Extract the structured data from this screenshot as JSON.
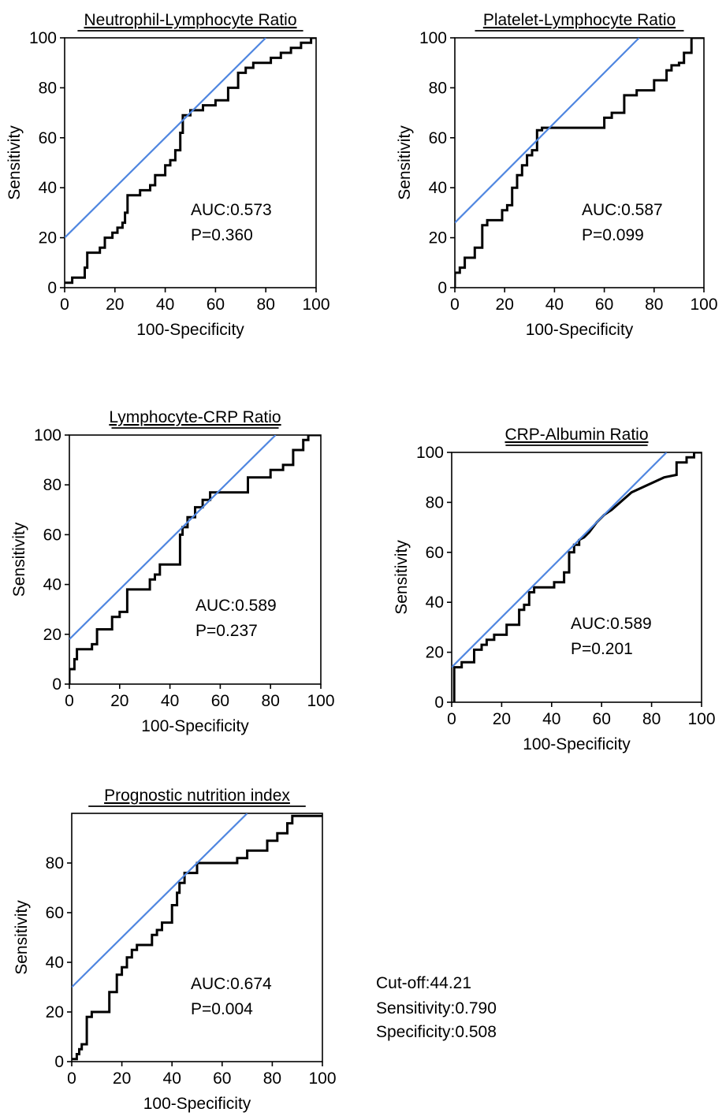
{
  "chart_data": [
    {
      "type": "line",
      "title": "Neutrophil-Lymphocyte Ratio",
      "xlabel": "100-Specificity",
      "ylabel": "Sensitivity",
      "xlim": [
        0,
        100
      ],
      "ylim": [
        0,
        100
      ],
      "xticks": [
        0,
        20,
        40,
        60,
        80,
        100
      ],
      "yticks": [
        0,
        20,
        40,
        60,
        80,
        100
      ],
      "annotations": [
        "AUC:0.573",
        "P=0.360"
      ],
      "series": [
        {
          "color": "#000000",
          "x": [
            0,
            3,
            3,
            8,
            8,
            9,
            9,
            14,
            14,
            16,
            16,
            19,
            19,
            21,
            21,
            23,
            23,
            24,
            24,
            25,
            25,
            30,
            30,
            34,
            34,
            36,
            36,
            40,
            40,
            42,
            42,
            44,
            44,
            46,
            46,
            47,
            47,
            50,
            50,
            55,
            55,
            60,
            60,
            65,
            65,
            69,
            69,
            72,
            72,
            75,
            75,
            82,
            82,
            86,
            86,
            90,
            90,
            94,
            94,
            98,
            98,
            100
          ],
          "y": [
            2,
            2,
            4,
            4,
            8,
            8,
            14,
            14,
            16,
            16,
            20,
            20,
            22,
            22,
            24,
            24,
            26,
            26,
            30,
            30,
            37,
            37,
            39,
            39,
            41,
            41,
            45,
            45,
            49,
            49,
            51,
            51,
            55,
            55,
            62,
            62,
            69,
            69,
            71,
            71,
            73,
            73,
            75,
            75,
            80,
            80,
            86,
            86,
            88,
            88,
            90,
            90,
            92,
            92,
            94,
            94,
            96,
            96,
            98,
            98,
            100,
            100
          ]
        },
        {
          "color": "#4f86e0",
          "x": [
            0,
            80
          ],
          "y": [
            20,
            100
          ]
        }
      ]
    },
    {
      "type": "line",
      "title": "Platelet-Lymphocyte Ratio",
      "xlabel": "100-Specificity",
      "ylabel": "Sensitivity",
      "xlim": [
        0,
        100
      ],
      "ylim": [
        0,
        100
      ],
      "xticks": [
        0,
        20,
        40,
        60,
        80,
        100
      ],
      "yticks": [
        0,
        20,
        40,
        60,
        80,
        100
      ],
      "annotations": [
        "AUC:0.587",
        "P=0.099"
      ],
      "series": [
        {
          "color": "#000000",
          "x": [
            0,
            0,
            2,
            2,
            4,
            4,
            8,
            8,
            11,
            11,
            13,
            13,
            19,
            19,
            21,
            21,
            23,
            23,
            25,
            25,
            27,
            27,
            29,
            29,
            31,
            31,
            33,
            33,
            35,
            35,
            37,
            37,
            60,
            60,
            63,
            63,
            68,
            68,
            73,
            73,
            80,
            80,
            85,
            85,
            87,
            87,
            90,
            90,
            92,
            92,
            95,
            95,
            100
          ],
          "y": [
            0,
            6,
            6,
            8,
            8,
            12,
            12,
            16,
            16,
            25,
            25,
            27,
            27,
            31,
            31,
            33,
            33,
            40,
            40,
            45,
            45,
            49,
            49,
            53,
            53,
            55,
            55,
            63,
            63,
            64,
            64,
            64,
            64,
            68,
            68,
            70,
            70,
            77,
            77,
            79,
            79,
            83,
            83,
            87,
            87,
            89,
            89,
            90,
            90,
            94,
            94,
            100,
            100
          ]
        },
        {
          "color": "#4f86e0",
          "x": [
            0,
            74
          ],
          "y": [
            26,
            100
          ]
        }
      ]
    },
    {
      "type": "line",
      "title": "Lymphocyte-CRP Ratio",
      "xlabel": "100-Specificity",
      "ylabel": "Sensitivity",
      "xlim": [
        0,
        100
      ],
      "ylim": [
        0,
        100
      ],
      "xticks": [
        0,
        20,
        40,
        60,
        80,
        100
      ],
      "yticks": [
        0,
        20,
        40,
        60,
        80,
        100
      ],
      "annotations": [
        "AUC:0.589",
        "P=0.237"
      ],
      "series": [
        {
          "color": "#000000",
          "x": [
            0,
            0,
            2,
            2,
            3,
            3,
            9,
            9,
            11,
            11,
            17,
            17,
            20,
            20,
            23,
            23,
            32,
            32,
            34,
            34,
            36,
            36,
            44,
            44,
            45,
            45,
            47,
            47,
            50,
            50,
            53,
            53,
            56,
            56,
            60,
            60,
            71,
            71,
            80,
            80,
            85,
            85,
            89,
            89,
            93,
            93,
            95,
            95,
            100
          ],
          "y": [
            0,
            6,
            6,
            10,
            10,
            14,
            14,
            16,
            16,
            22,
            22,
            27,
            27,
            29,
            29,
            38,
            38,
            42,
            42,
            44,
            44,
            48,
            48,
            60,
            60,
            63,
            63,
            67,
            67,
            71,
            71,
            74,
            74,
            77,
            77,
            77,
            77,
            83,
            83,
            86,
            86,
            88,
            88,
            94,
            94,
            98,
            98,
            100,
            100
          ]
        },
        {
          "color": "#4f86e0",
          "x": [
            0,
            82
          ],
          "y": [
            18,
            100
          ]
        }
      ]
    },
    {
      "type": "line",
      "title": "CRP-Albumin Ratio",
      "xlabel": "100-Specificity",
      "ylabel": "Sensitivity",
      "xlim": [
        0,
        100
      ],
      "ylim": [
        0,
        100
      ],
      "xticks": [
        0,
        20,
        40,
        60,
        80,
        100
      ],
      "yticks": [
        0,
        20,
        40,
        60,
        80,
        100
      ],
      "annotations": [
        "AUC:0.589",
        "P=0.201"
      ],
      "series": [
        {
          "color": "#000000",
          "x": [
            1,
            1,
            4,
            4,
            9,
            9,
            12,
            12,
            14,
            14,
            17,
            17,
            22,
            22,
            27,
            27,
            29,
            29,
            31,
            31,
            33,
            33,
            36,
            36,
            41,
            41,
            45,
            45,
            47,
            47,
            49,
            49,
            51,
            51,
            53,
            55,
            58,
            61,
            64,
            72,
            85,
            90,
            90,
            94,
            94,
            97,
            97,
            100
          ],
          "y": [
            0,
            14,
            14,
            16,
            16,
            21,
            21,
            23,
            23,
            25,
            25,
            27,
            27,
            31,
            31,
            37,
            37,
            39,
            39,
            44,
            44,
            46,
            46,
            46,
            46,
            48,
            48,
            52,
            52,
            60,
            60,
            63,
            63,
            65,
            66,
            68,
            72,
            75,
            77,
            84,
            90,
            91,
            96,
            96,
            98,
            98,
            100,
            100
          ]
        },
        {
          "color": "#4f86e0",
          "x": [
            0,
            86
          ],
          "y": [
            14,
            100
          ]
        }
      ]
    },
    {
      "type": "line",
      "title": "Prognostic nutrition index",
      "xlabel": "100-Specificity",
      "ylabel": "Sensitivity",
      "xlim": [
        0,
        100
      ],
      "ylim": [
        0,
        100
      ],
      "xticks": [
        0,
        20,
        40,
        60,
        80,
        100
      ],
      "yticks": [
        0,
        20,
        40,
        60,
        80
      ],
      "annotations": [
        "AUC:0.674",
        "P=0.004"
      ],
      "series": [
        {
          "color": "#000000",
          "x": [
            0,
            2,
            2,
            3,
            3,
            4,
            4,
            6,
            6,
            8,
            8,
            15,
            15,
            18,
            18,
            20,
            20,
            22,
            22,
            24,
            24,
            26,
            26,
            32,
            32,
            34,
            34,
            36,
            36,
            40,
            40,
            42,
            42,
            43,
            43,
            45,
            45,
            50,
            50,
            66,
            66,
            70,
            70,
            78,
            78,
            82,
            82,
            86,
            86,
            88,
            88,
            100
          ],
          "y": [
            1,
            1,
            3,
            3,
            5,
            5,
            7,
            7,
            18,
            18,
            20,
            20,
            28,
            28,
            35,
            35,
            38,
            38,
            42,
            42,
            45,
            45,
            47,
            47,
            51,
            51,
            53,
            53,
            56,
            56,
            63,
            63,
            68,
            68,
            72,
            72,
            76,
            76,
            80,
            80,
            82,
            82,
            85,
            85,
            89,
            89,
            92,
            92,
            96,
            96,
            99,
            99
          ]
        },
        {
          "color": "#4f86e0",
          "x": [
            0,
            70
          ],
          "y": [
            30,
            100
          ]
        }
      ]
    }
  ],
  "note": {
    "lines": [
      "Cut-off:44.21",
      "Sensitivity:0.790",
      "Specificity:0.508"
    ]
  }
}
